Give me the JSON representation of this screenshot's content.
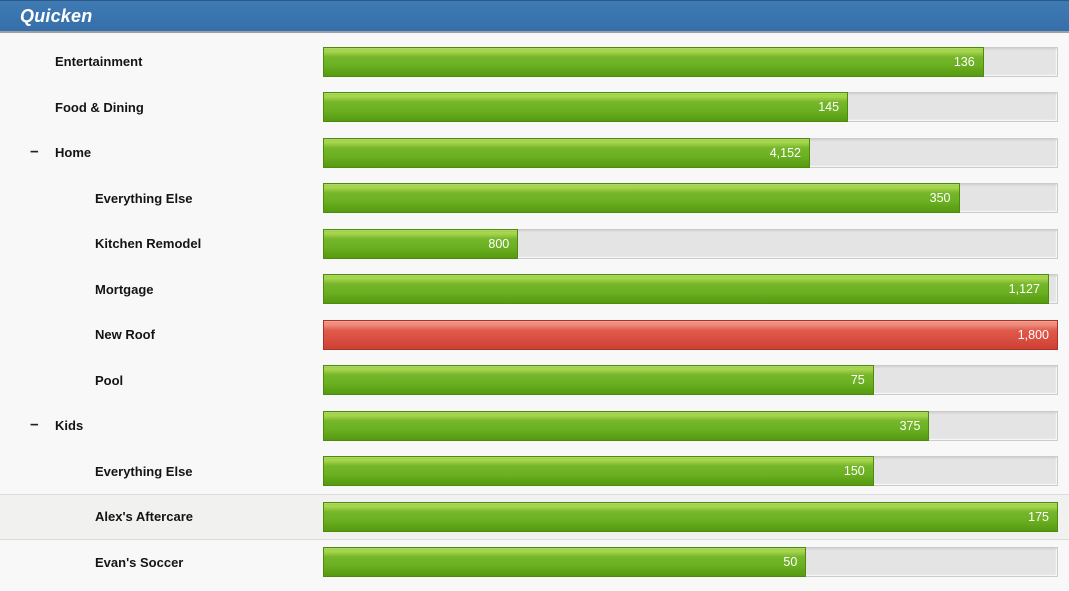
{
  "header": {
    "title": "Quicken",
    "background_color": "#3a74ae"
  },
  "icons": {
    "collapse_glyph": "−"
  },
  "colors": {
    "bar_green": "#6bb122",
    "bar_red": "#e05a4b",
    "track_gray": "#e4e4e4",
    "selected_row_bg": "#f1f1ef"
  },
  "chart_data": {
    "type": "bar",
    "title": "Quicken",
    "orientation": "horizontal",
    "categories": [
      "Entertainment",
      "Food & Dining",
      "Home",
      "Everything Else",
      "Kitchen Remodel",
      "Mortgage",
      "New Roof",
      "Pool",
      "Kids",
      "Everything Else",
      "Alex's Aftercare",
      "Evan's Soccer"
    ],
    "values": [
      136,
      145,
      4152,
      350,
      800,
      1127,
      1800,
      75,
      375,
      150,
      175,
      50
    ]
  },
  "rows": [
    {
      "label": "Entertainment",
      "value": "136",
      "pct": 90,
      "color": "green",
      "level": 1,
      "toggle": false,
      "selected": false
    },
    {
      "label": "Food & Dining",
      "value": "145",
      "pct": 71.5,
      "color": "green",
      "level": 1,
      "toggle": false,
      "selected": false
    },
    {
      "label": "Home",
      "value": "4,152",
      "pct": 66.3,
      "color": "green",
      "level": 1,
      "toggle": true,
      "selected": false
    },
    {
      "label": "Everything Else",
      "value": "350",
      "pct": 86.7,
      "color": "green",
      "level": 2,
      "toggle": false,
      "selected": false
    },
    {
      "label": "Kitchen Remodel",
      "value": "800",
      "pct": 26.5,
      "color": "green",
      "level": 2,
      "toggle": false,
      "selected": false
    },
    {
      "label": "Mortgage",
      "value": "1,127",
      "pct": 98.9,
      "color": "green",
      "level": 2,
      "toggle": false,
      "selected": false
    },
    {
      "label": "New Roof",
      "value": "1,800",
      "pct": 100,
      "color": "red",
      "level": 2,
      "toggle": false,
      "selected": false
    },
    {
      "label": "Pool",
      "value": "75",
      "pct": 75,
      "color": "green",
      "level": 2,
      "toggle": false,
      "selected": false
    },
    {
      "label": "Kids",
      "value": "375",
      "pct": 82.6,
      "color": "green",
      "level": 1,
      "toggle": true,
      "selected": false
    },
    {
      "label": "Everything Else",
      "value": "150",
      "pct": 75,
      "color": "green",
      "level": 2,
      "toggle": false,
      "selected": false
    },
    {
      "label": "Alex's Aftercare",
      "value": "175",
      "pct": 100,
      "color": "green",
      "level": 2,
      "toggle": false,
      "selected": true
    },
    {
      "label": "Evan's Soccer",
      "value": "50",
      "pct": 65.8,
      "color": "green",
      "level": 2,
      "toggle": false,
      "selected": false
    }
  ]
}
